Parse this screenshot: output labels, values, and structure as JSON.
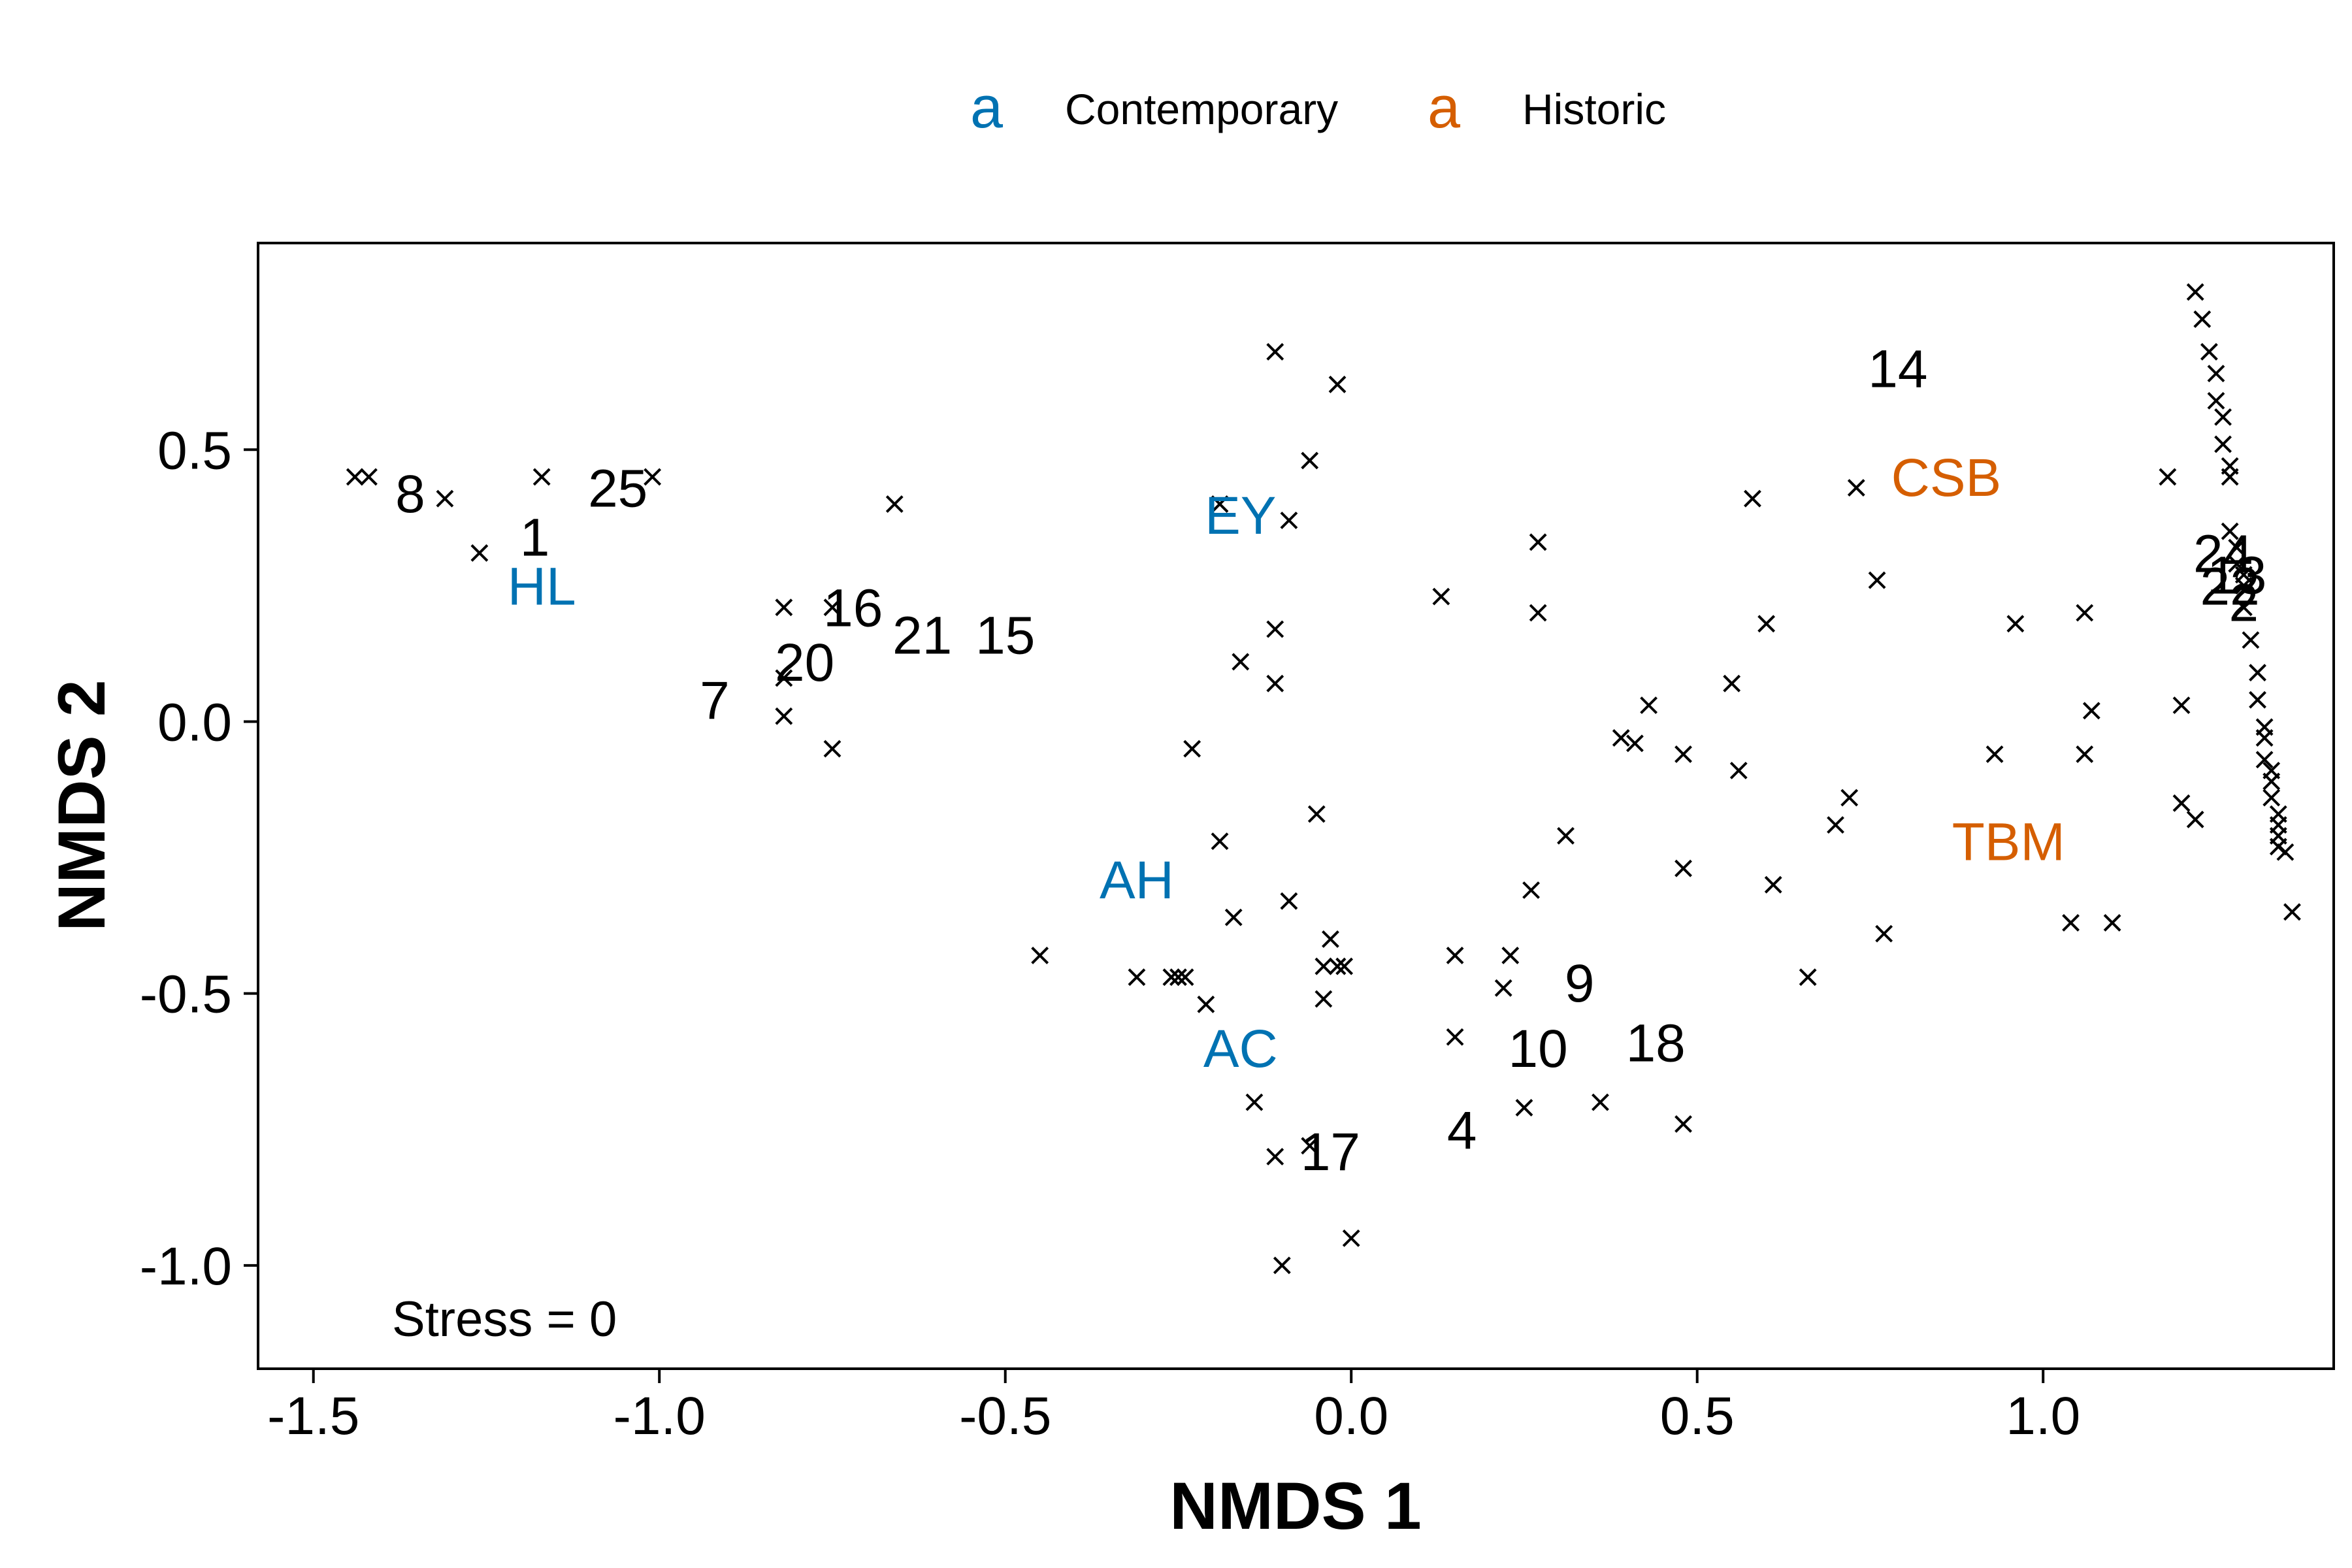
{
  "chart_data": {
    "type": "scatter",
    "xlabel": "NMDS 1",
    "ylabel": "NMDS 2",
    "xlim": [
      -1.58,
      1.42
    ],
    "ylim": [
      -1.19,
      0.88
    ],
    "x_ticks": [
      -1.5,
      -1.0,
      -0.5,
      0.0,
      0.5,
      1.0
    ],
    "x_tick_labels": [
      "-1.5",
      "-1.0",
      "-0.5",
      "0.0",
      "0.5",
      "1.0"
    ],
    "y_ticks": [
      0.5,
      0.0,
      -0.5,
      -1.0
    ],
    "y_tick_labels": [
      "0.5",
      "0.0",
      "-0.5",
      "-1.0"
    ],
    "grid": false,
    "legend_position": "top-center",
    "annotation": "Stress = 0",
    "colors": {
      "contemporary": "#0072B2",
      "historic": "#D55E00",
      "points": "#000000"
    },
    "legend": [
      {
        "key": "a",
        "label": "Contemporary",
        "group": "contemporary"
      },
      {
        "key": "a",
        "label": "Historic",
        "group": "historic"
      }
    ],
    "site_labels": [
      {
        "label": "HL",
        "x": -1.17,
        "y": 0.25,
        "group": "contemporary"
      },
      {
        "label": "EY",
        "x": -0.16,
        "y": 0.38,
        "group": "contemporary"
      },
      {
        "label": "AH",
        "x": -0.31,
        "y": -0.29,
        "group": "contemporary"
      },
      {
        "label": "AC",
        "x": -0.16,
        "y": -0.6,
        "group": "contemporary"
      },
      {
        "label": "CSB",
        "x": 0.86,
        "y": 0.45,
        "group": "historic"
      },
      {
        "label": "TBM",
        "x": 0.95,
        "y": -0.22,
        "group": "historic"
      }
    ],
    "sample_labels": [
      {
        "label": "8",
        "x": -1.36,
        "y": 0.42
      },
      {
        "label": "25",
        "x": -1.06,
        "y": 0.43
      },
      {
        "label": "1",
        "x": -1.18,
        "y": 0.34
      },
      {
        "label": "16",
        "x": -0.72,
        "y": 0.21
      },
      {
        "label": "21",
        "x": -0.62,
        "y": 0.16
      },
      {
        "label": "15",
        "x": -0.5,
        "y": 0.16
      },
      {
        "label": "20",
        "x": -0.79,
        "y": 0.11
      },
      {
        "label": "7",
        "x": -0.92,
        "y": 0.04
      },
      {
        "label": "14",
        "x": 0.79,
        "y": 0.65
      },
      {
        "label": "24",
        "x": 1.26,
        "y": 0.31
      },
      {
        "label": "13",
        "x": 1.28,
        "y": 0.27
      },
      {
        "label": "22",
        "x": 1.27,
        "y": 0.25
      },
      {
        "label": "2",
        "x": 1.29,
        "y": 0.22
      },
      {
        "label": "9",
        "x": 0.33,
        "y": -0.48
      },
      {
        "label": "10",
        "x": 0.27,
        "y": -0.6
      },
      {
        "label": "18",
        "x": 0.44,
        "y": -0.59
      },
      {
        "label": "4",
        "x": 0.16,
        "y": -0.75
      },
      {
        "label": "17",
        "x": -0.03,
        "y": -0.79
      }
    ],
    "points": [
      {
        "x": -1.44,
        "y": 0.45
      },
      {
        "x": -1.42,
        "y": 0.45
      },
      {
        "x": -1.31,
        "y": 0.41
      },
      {
        "x": -1.26,
        "y": 0.31
      },
      {
        "x": -1.17,
        "y": 0.45
      },
      {
        "x": -1.01,
        "y": 0.45
      },
      {
        "x": -0.82,
        "y": 0.21
      },
      {
        "x": -0.82,
        "y": 0.08
      },
      {
        "x": -0.82,
        "y": 0.01
      },
      {
        "x": -0.75,
        "y": 0.21
      },
      {
        "x": -0.75,
        "y": -0.05
      },
      {
        "x": -0.66,
        "y": 0.4
      },
      {
        "x": -0.45,
        "y": -0.43
      },
      {
        "x": -0.31,
        "y": -0.47
      },
      {
        "x": -0.26,
        "y": -0.47
      },
      {
        "x": -0.25,
        "y": -0.47
      },
      {
        "x": -0.24,
        "y": -0.47
      },
      {
        "x": -0.23,
        "y": -0.05
      },
      {
        "x": -0.21,
        "y": -0.52
      },
      {
        "x": -0.19,
        "y": 0.4
      },
      {
        "x": -0.19,
        "y": -0.22
      },
      {
        "x": -0.17,
        "y": -0.36
      },
      {
        "x": -0.16,
        "y": 0.11
      },
      {
        "x": -0.14,
        "y": -0.7
      },
      {
        "x": -0.11,
        "y": 0.68
      },
      {
        "x": -0.11,
        "y": 0.17
      },
      {
        "x": -0.11,
        "y": 0.07
      },
      {
        "x": -0.11,
        "y": -0.8
      },
      {
        "x": -0.1,
        "y": -1.0
      },
      {
        "x": -0.09,
        "y": 0.37
      },
      {
        "x": -0.09,
        "y": -0.33
      },
      {
        "x": -0.06,
        "y": 0.48
      },
      {
        "x": -0.06,
        "y": -0.78
      },
      {
        "x": -0.05,
        "y": -0.17
      },
      {
        "x": -0.04,
        "y": -0.45
      },
      {
        "x": -0.04,
        "y": -0.51
      },
      {
        "x": -0.03,
        "y": -0.4
      },
      {
        "x": -0.02,
        "y": 0.62
      },
      {
        "x": -0.02,
        "y": -0.45
      },
      {
        "x": -0.01,
        "y": -0.45
      },
      {
        "x": 0.0,
        "y": -0.95
      },
      {
        "x": 0.13,
        "y": 0.23
      },
      {
        "x": 0.15,
        "y": -0.43
      },
      {
        "x": 0.15,
        "y": -0.58
      },
      {
        "x": 0.22,
        "y": -0.49
      },
      {
        "x": 0.23,
        "y": -0.43
      },
      {
        "x": 0.25,
        "y": -0.71
      },
      {
        "x": 0.26,
        "y": -0.31
      },
      {
        "x": 0.27,
        "y": 0.33
      },
      {
        "x": 0.27,
        "y": 0.2
      },
      {
        "x": 0.31,
        "y": -0.21
      },
      {
        "x": 0.36,
        "y": -0.7
      },
      {
        "x": 0.39,
        "y": -0.03
      },
      {
        "x": 0.41,
        "y": -0.04
      },
      {
        "x": 0.43,
        "y": 0.03
      },
      {
        "x": 0.48,
        "y": -0.06
      },
      {
        "x": 0.48,
        "y": -0.27
      },
      {
        "x": 0.48,
        "y": -0.74
      },
      {
        "x": 0.55,
        "y": 0.07
      },
      {
        "x": 0.56,
        "y": -0.09
      },
      {
        "x": 0.58,
        "y": 0.41
      },
      {
        "x": 0.6,
        "y": 0.18
      },
      {
        "x": 0.61,
        "y": -0.3
      },
      {
        "x": 0.66,
        "y": -0.47
      },
      {
        "x": 0.7,
        "y": -0.19
      },
      {
        "x": 0.72,
        "y": -0.14
      },
      {
        "x": 0.73,
        "y": 0.43
      },
      {
        "x": 0.76,
        "y": 0.26
      },
      {
        "x": 0.77,
        "y": -0.39
      },
      {
        "x": 0.93,
        "y": -0.06
      },
      {
        "x": 0.96,
        "y": 0.18
      },
      {
        "x": 1.04,
        "y": -0.37
      },
      {
        "x": 1.06,
        "y": 0.2
      },
      {
        "x": 1.06,
        "y": -0.06
      },
      {
        "x": 1.07,
        "y": 0.02
      },
      {
        "x": 1.1,
        "y": -0.37
      },
      {
        "x": 1.18,
        "y": 0.45
      },
      {
        "x": 1.2,
        "y": 0.03
      },
      {
        "x": 1.2,
        "y": -0.15
      },
      {
        "x": 1.22,
        "y": -0.18
      },
      {
        "x": 1.22,
        "y": 0.79
      },
      {
        "x": 1.23,
        "y": 0.74
      },
      {
        "x": 1.24,
        "y": 0.68
      },
      {
        "x": 1.25,
        "y": 0.64
      },
      {
        "x": 1.25,
        "y": 0.59
      },
      {
        "x": 1.26,
        "y": 0.56
      },
      {
        "x": 1.26,
        "y": 0.51
      },
      {
        "x": 1.27,
        "y": 0.47
      },
      {
        "x": 1.27,
        "y": 0.45
      },
      {
        "x": 1.27,
        "y": 0.35
      },
      {
        "x": 1.28,
        "y": 0.32
      },
      {
        "x": 1.28,
        "y": 0.29
      },
      {
        "x": 1.29,
        "y": 0.27
      },
      {
        "x": 1.29,
        "y": 0.25
      },
      {
        "x": 1.29,
        "y": 0.21
      },
      {
        "x": 1.3,
        "y": 0.15
      },
      {
        "x": 1.31,
        "y": 0.09
      },
      {
        "x": 1.31,
        "y": 0.04
      },
      {
        "x": 1.32,
        "y": -0.01
      },
      {
        "x": 1.32,
        "y": -0.03
      },
      {
        "x": 1.32,
        "y": -0.07
      },
      {
        "x": 1.33,
        "y": -0.09
      },
      {
        "x": 1.33,
        "y": -0.11
      },
      {
        "x": 1.33,
        "y": -0.14
      },
      {
        "x": 1.34,
        "y": -0.17
      },
      {
        "x": 1.34,
        "y": -0.19
      },
      {
        "x": 1.34,
        "y": -0.21
      },
      {
        "x": 1.34,
        "y": -0.23
      },
      {
        "x": 1.35,
        "y": -0.24
      },
      {
        "x": 1.36,
        "y": -0.35
      }
    ]
  }
}
